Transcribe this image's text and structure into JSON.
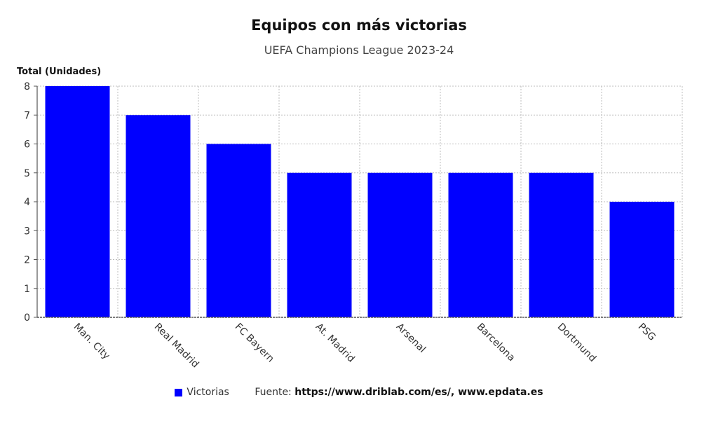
{
  "chart_data": {
    "type": "bar",
    "title": "Equipos con más victorias",
    "subtitle": "UEFA Champions League 2023-24",
    "ylabel": "Total (Unidades)",
    "xlabel": "",
    "categories": [
      "Man. City",
      "Real Madrid",
      "FC Bayern",
      "At. Madrid",
      "Arsenal",
      "Barcelona",
      "Dortmund",
      "PSG"
    ],
    "series": [
      {
        "name": "Victorias",
        "values": [
          8,
          7,
          6,
          5,
          5,
          5,
          5,
          4
        ],
        "color": "#0000ff"
      }
    ],
    "ylim": [
      0,
      8
    ],
    "yticks": [
      0,
      1,
      2,
      3,
      4,
      5,
      6,
      7,
      8
    ],
    "grid": true,
    "legend_position": "bottom"
  },
  "source": {
    "label": "Fuente:",
    "value": "https://www.driblab.com/es/, www.epdata.es"
  }
}
